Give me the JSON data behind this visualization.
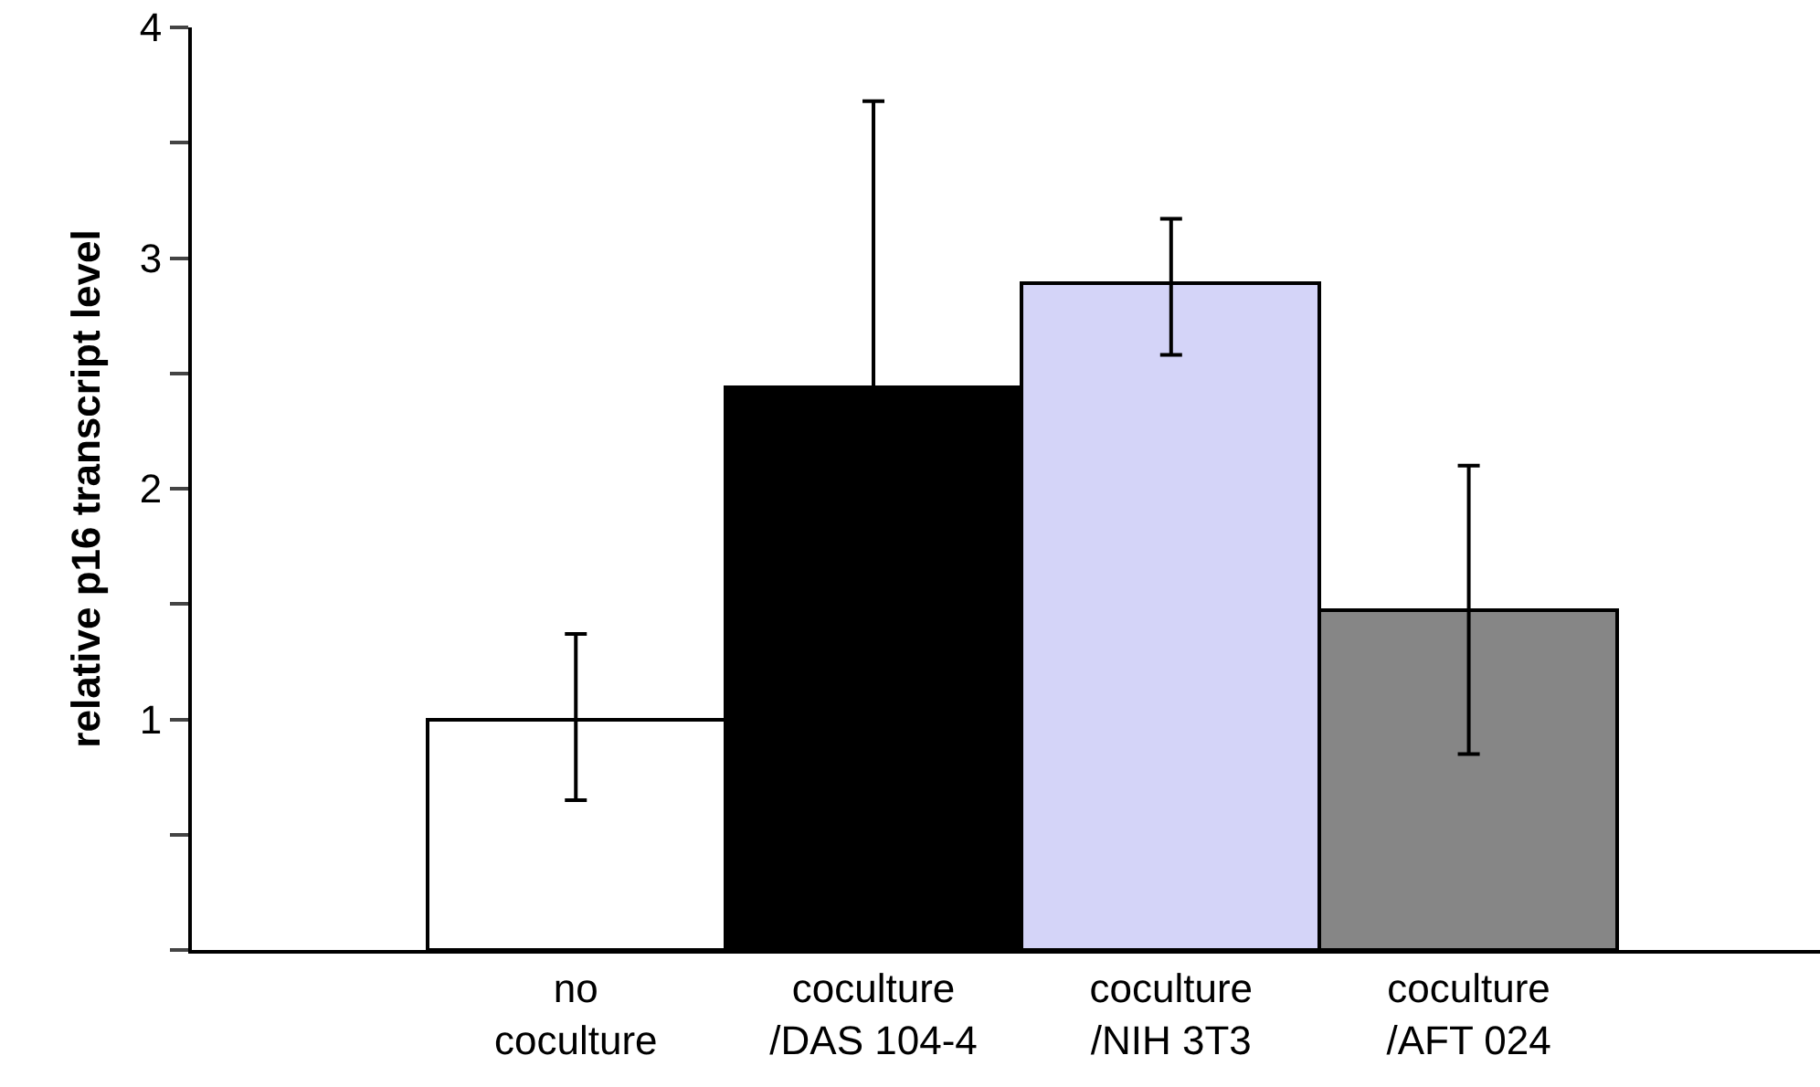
{
  "chart_data": {
    "type": "bar",
    "ylabel": "relative p16 transcript level",
    "categories": [
      "no\ncoculture",
      "coculture\n/DAS 104-4",
      "coculture\n/NIH 3T3",
      "coculture\n/AFT 024"
    ],
    "values": [
      1.0,
      2.44,
      2.89,
      1.47
    ],
    "colors": [
      "#ffffff",
      "#000000",
      "#d4d4f8",
      "#868686"
    ],
    "errors": [
      [
        0.65,
        1.37
      ],
      [
        2.44,
        3.68
      ],
      [
        2.58,
        3.17
      ],
      [
        0.85,
        2.1
      ]
    ],
    "ylim": [
      0,
      4
    ],
    "yticks": [
      {
        "value": 0,
        "label": null
      },
      {
        "value": 0.5,
        "label": null
      },
      1,
      {
        "value": 1.5,
        "label": null
      },
      2,
      {
        "value": 2.5,
        "label": null
      },
      3,
      {
        "value": 3.5,
        "label": null
      },
      4
    ]
  }
}
